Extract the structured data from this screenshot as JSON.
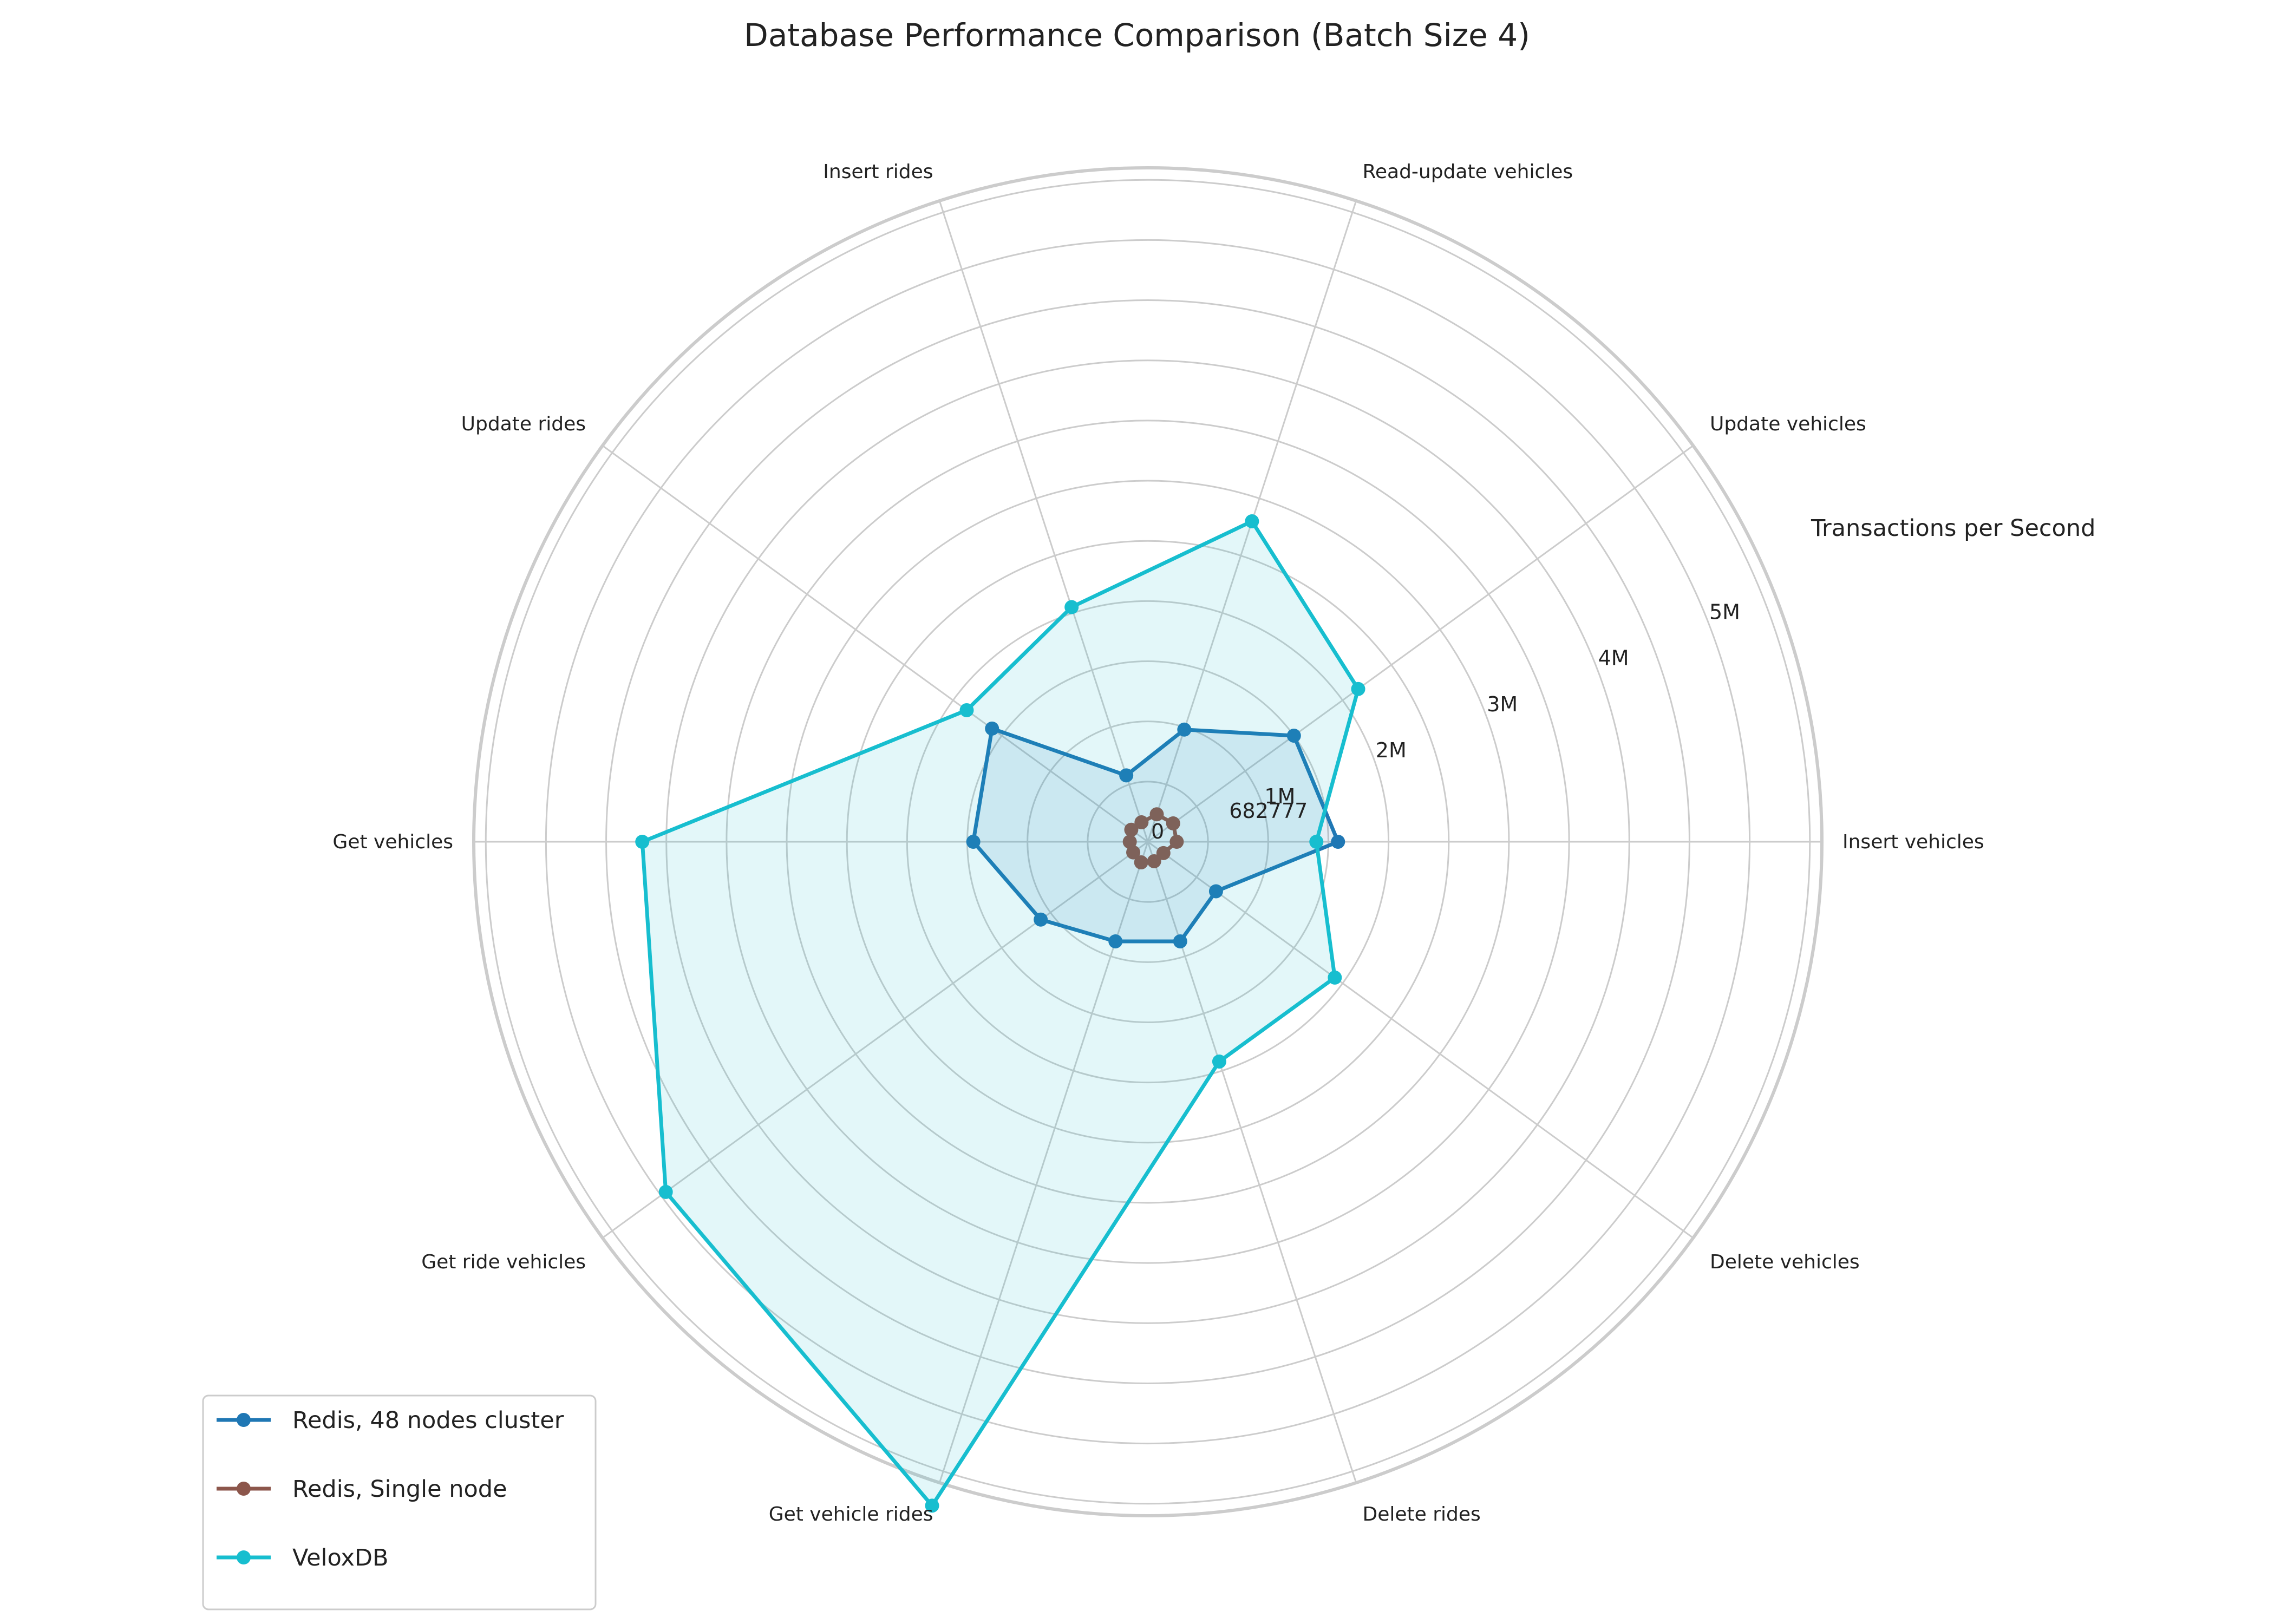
{
  "chart_data": {
    "type": "radar",
    "title": "Database Performance Comparison (Batch Size 4)",
    "radial_axis_label": "Transactions per Second",
    "categories": [
      "Insert vehicles",
      "Update vehicles",
      "Read-update vehicles",
      "Insert rides",
      "Update rides",
      "Get vehicles",
      "Get ride vehicles",
      "Get vehicle rides",
      "Delete rides",
      "Delete vehicles"
    ],
    "radial_ticks": [
      {
        "value": 682777,
        "label": "682777"
      },
      {
        "value": 1000000,
        "label": "1M"
      },
      {
        "value": 2000000,
        "label": "2M"
      },
      {
        "value": 3000000,
        "label": "3M"
      },
      {
        "value": 4000000,
        "label": "4M"
      },
      {
        "value": 5000000,
        "label": "5M"
      }
    ],
    "center_tick_label": "0",
    "rlim": [
      0,
      5600000
    ],
    "grid": true,
    "legend_position": "lower-left",
    "series": [
      {
        "name": "Redis, 48 nodes cluster",
        "color": "#1f77b4",
        "fill": true,
        "values": [
          1580000,
          1500000,
          980000,
          580000,
          1600000,
          1450000,
          1100000,
          870000,
          870000,
          700000
        ]
      },
      {
        "name": "Redis, Single node",
        "color": "#8c564b",
        "fill": false,
        "values": [
          240000,
          260000,
          240000,
          170000,
          170000,
          150000,
          150000,
          180000,
          170000,
          160000
        ]
      },
      {
        "name": "VeloxDB",
        "color": "#17becf",
        "fill": true,
        "values": [
          1400000,
          2160000,
          2800000,
          2050000,
          1860000,
          4200000,
          4950000,
          5800000,
          1920000,
          1920000
        ]
      }
    ]
  }
}
